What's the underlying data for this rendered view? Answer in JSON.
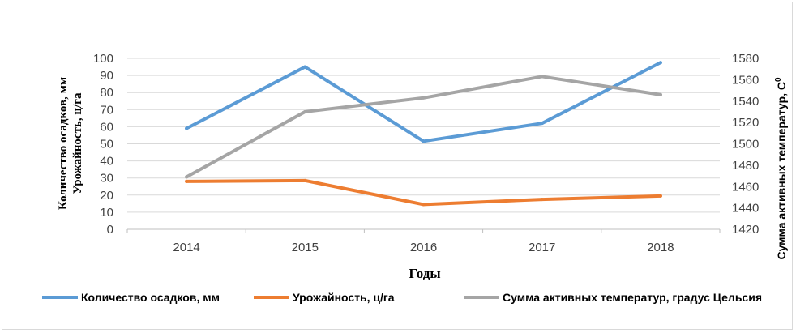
{
  "chart_data": {
    "type": "line",
    "categories": [
      "2014",
      "2015",
      "2016",
      "2017",
      "2018"
    ],
    "xlabel": "Годы",
    "ylabel_line1": "Количество осадков, мм",
    "ylabel_line2": "Урожайность, ц/га",
    "y2label": "Сумма активных температур, С",
    "y2label_sup": "0",
    "ylim": [
      0,
      100
    ],
    "yticks": [
      "0",
      "10",
      "20",
      "30",
      "40",
      "50",
      "60",
      "70",
      "80",
      "90",
      "100"
    ],
    "y2lim": [
      1420,
      1580
    ],
    "y2ticks": [
      "1420",
      "1440",
      "1460",
      "1480",
      "1500",
      "1520",
      "1540",
      "1560",
      "1580"
    ],
    "grid": true,
    "legend_position": "bottom",
    "series": [
      {
        "name": "Количество осадков, мм",
        "axis": "left",
        "color": "#5b9bd5",
        "values": [
          59,
          95,
          51.5,
          62,
          97.5
        ]
      },
      {
        "name": "Урожайность, ц/га",
        "axis": "left",
        "color": "#ed7d31",
        "values": [
          28,
          28.5,
          14.5,
          17.5,
          19.5
        ]
      },
      {
        "name": "Сумма активных температур, градус Цельсия",
        "axis": "right",
        "color": "#a5a5a5",
        "values": [
          1469,
          1530,
          1543,
          1563,
          1546
        ]
      }
    ]
  }
}
